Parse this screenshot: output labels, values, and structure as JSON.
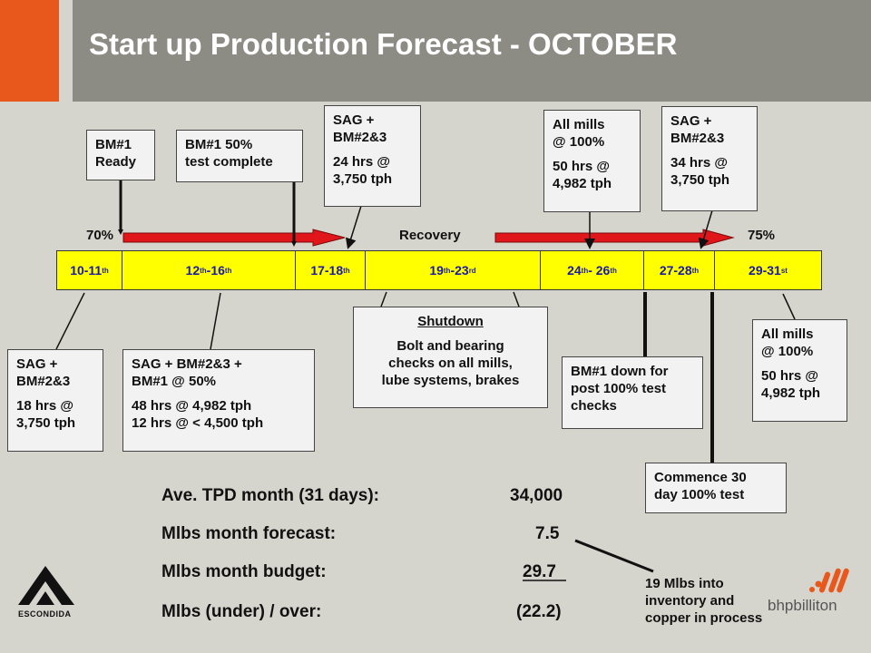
{
  "title": "Start up Production Forecast - OCTOBER",
  "timeline": {
    "segments": [
      {
        "a": "10-11",
        "sa": "th",
        "b": "",
        "sb": ""
      },
      {
        "a": "12",
        "sa": "th",
        "b": "-16",
        "sb": "th"
      },
      {
        "a": "17-18",
        "sa": "th",
        "b": "",
        "sb": ""
      },
      {
        "a": "19",
        "sa": "th",
        "b": "-23",
        "sb": "rd"
      },
      {
        "a": "24",
        "sa": "th",
        "b": " - 26",
        "sb": "th"
      },
      {
        "a": "27-28",
        "sa": "th",
        "b": "",
        "sb": ""
      },
      {
        "a": "29-31",
        "sa": "st",
        "b": "",
        "sb": ""
      }
    ],
    "label_70": "70%",
    "label_recovery": "Recovery",
    "label_75": "75%"
  },
  "callouts": {
    "bm1_ready": [
      "BM#1",
      "Ready"
    ],
    "bm1_50": [
      "BM#1 50%",
      "test complete"
    ],
    "sag_top1": {
      "head": [
        "SAG +",
        "BM#2&3"
      ],
      "body": [
        "24 hrs @",
        "3,750 tph"
      ]
    },
    "allmills_top": {
      "head": [
        "All mills",
        "@ 100%"
      ],
      "body": [
        "50 hrs @",
        "4,982 tph"
      ]
    },
    "sag_top2": {
      "head": [
        "SAG +",
        "BM#2&3"
      ],
      "body": [
        "34 hrs @",
        "3,750 tph"
      ]
    },
    "sag_bot1": {
      "head": [
        "SAG +",
        "BM#2&3"
      ],
      "body": [
        "18 hrs @",
        "3,750 tph"
      ]
    },
    "sag_bot2": {
      "head": [
        "SAG + BM#2&3 +",
        "BM#1 @ 50%"
      ],
      "body": [
        "48 hrs @ 4,982 tph",
        "12 hrs @ < 4,500 tph"
      ]
    },
    "shutdown": {
      "title": "Shutdown",
      "body": [
        "Bolt and bearing",
        "checks on all mills,",
        "lube systems, brakes"
      ]
    },
    "bm1_down": [
      "BM#1 down for",
      "post 100% test",
      "checks"
    ],
    "allmills_bot": {
      "head": [
        "All mills",
        "@ 100%"
      ],
      "body": [
        "50 hrs @",
        "4,982 tph"
      ]
    },
    "commence": [
      "Commence 30",
      "day 100% test"
    ]
  },
  "summary": {
    "rows": [
      {
        "label": "Ave. TPD month (31 days):",
        "value": "34,000"
      },
      {
        "label": "Mlbs month forecast:",
        "value": "7.5"
      },
      {
        "label": "Mlbs month budget:",
        "value": "29.7"
      },
      {
        "label": "Mlbs (under) / over:",
        "value": "(22.2)"
      }
    ],
    "note": [
      "19 Mlbs into",
      "inventory and",
      "copper in process"
    ]
  },
  "logos": {
    "escondida": "ESCONDIDA",
    "bhp": "bhpbilliton"
  },
  "colors": {
    "accent_orange": "#e8581c",
    "header_gray": "#8c8b84",
    "timeline_yellow": "#ffff00",
    "arrow_red": "#e0161b",
    "date_blue": "#1a1aa8"
  }
}
